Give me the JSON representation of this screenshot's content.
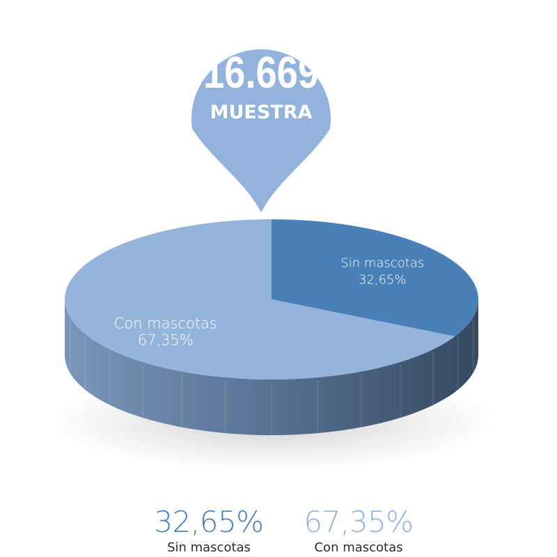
{
  "pin": {
    "number": "16.669",
    "label": "MUESTRA",
    "color": "#93b3dc"
  },
  "chart_data": {
    "type": "pie",
    "title": "",
    "slices": [
      {
        "label": "Sin mascotas",
        "value": 32.65,
        "value_text": "32,65%",
        "color": "#4a80b8"
      },
      {
        "label": "Con mascotas",
        "value": 67.35,
        "value_text": "67,35%",
        "color": "#94b4dc"
      }
    ],
    "style": "3d",
    "start": "top",
    "direction": "clockwise"
  },
  "legend": [
    {
      "value": "32,65%",
      "label": "Sin mascotas",
      "color": "#4a80b8"
    },
    {
      "value": "67,35%",
      "label": "Con mascotas",
      "color": "#94b4dc"
    }
  ]
}
